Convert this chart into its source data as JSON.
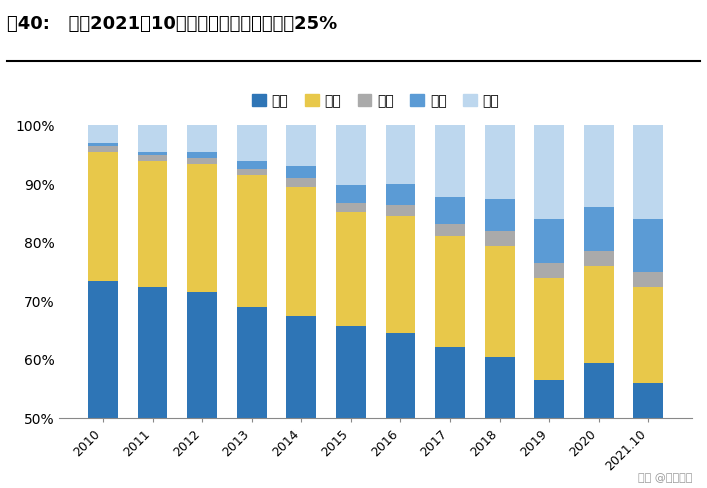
{
  "title": "图40:   截至2021年10月风光装机规模占比已超25%",
  "categories": [
    "2010",
    "2011",
    "2012",
    "2013",
    "2014",
    "2015",
    "2016",
    "2017",
    "2018",
    "2019",
    "2020",
    "2021.10"
  ],
  "series_heights": {
    "火电": [
      23.5,
      22.5,
      21.5,
      19.0,
      17.5,
      15.8,
      14.5,
      12.2,
      10.5,
      6.5,
      9.5,
      6.0
    ],
    "水电": [
      22.0,
      21.5,
      22.0,
      22.5,
      22.0,
      19.5,
      20.0,
      19.0,
      19.0,
      17.5,
      16.5,
      16.5
    ],
    "核电": [
      1.0,
      1.0,
      1.0,
      1.0,
      1.5,
      1.5,
      2.0,
      2.0,
      2.5,
      2.5,
      2.5,
      2.5
    ],
    "光伏": [
      0.5,
      0.5,
      1.0,
      1.5,
      2.0,
      3.0,
      3.5,
      4.5,
      5.5,
      7.5,
      7.5,
      9.0
    ],
    "风电": [
      3.0,
      4.5,
      4.5,
      6.0,
      7.0,
      10.2,
      10.0,
      12.3,
      12.5,
      16.0,
      14.0,
      16.0
    ]
  },
  "colors": {
    "火电": "#2E75B6",
    "水电": "#E8C84A",
    "核电": "#AAAAAA",
    "光伏": "#5B9BD5",
    "风电": "#BDD7EE"
  },
  "ylim": [
    50,
    100
  ],
  "yticks": [
    50,
    60,
    70,
    80,
    90,
    100
  ],
  "legend_labels": [
    "火电",
    "水电",
    "核电",
    "光伏",
    "风电"
  ],
  "background_color": "#FFFFFF",
  "watermark": "头条 @未来智库",
  "bar_width": 0.6
}
